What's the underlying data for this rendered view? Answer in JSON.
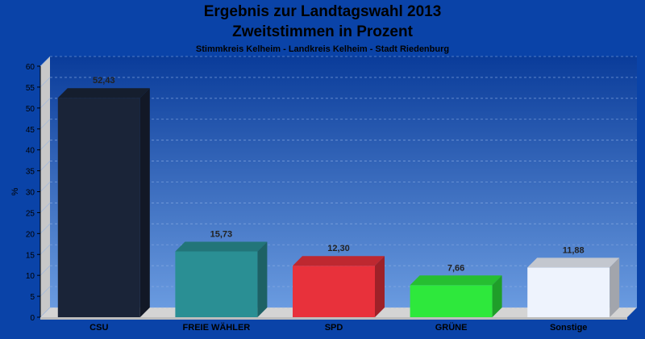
{
  "chart_data": {
    "type": "bar",
    "title": "Ergebnis zur Landtagswahl 2013",
    "subtitle": "Zweitstimmen in Prozent",
    "caption": "Stimmkreis Kelheim - Landkreis Kelheim - Stadt Riedenburg",
    "ylabel": "%",
    "xlabel": "",
    "ylim": [
      0,
      60
    ],
    "yticks": [
      0,
      5,
      10,
      15,
      20,
      25,
      30,
      35,
      40,
      45,
      50,
      55,
      60
    ],
    "categories": [
      "CSU",
      "FREIE WÄHLER",
      "SPD",
      "GRÜNE",
      "Sonstige"
    ],
    "values": [
      52.43,
      15.73,
      12.3,
      7.66,
      11.88
    ],
    "value_labels": [
      "52,43",
      "15,73",
      "12,30",
      "7,66",
      "11,88"
    ],
    "colors": [
      "#1a2438",
      "#2a8f94",
      "#e8313b",
      "#2ee83c",
      "#eef3fd"
    ],
    "grid": true,
    "bar_style": "3d"
  }
}
